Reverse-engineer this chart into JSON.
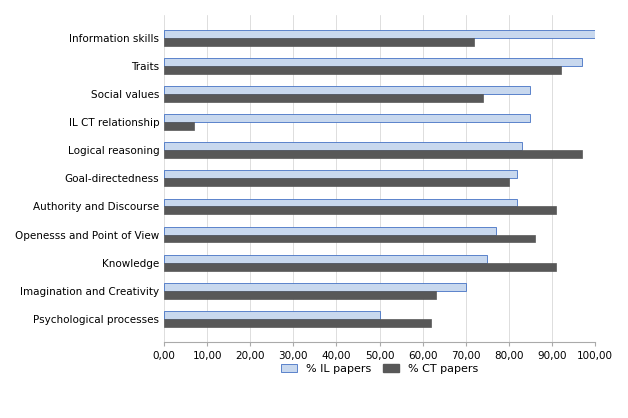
{
  "categories": [
    "Information skills",
    "Traits",
    "Social values",
    "IL CT relationship",
    "Logical reasoning",
    "Goal-directedness",
    "Authority and Discourse",
    "Openesss and Point of View",
    "Knowledge",
    "Imagination and Creativity",
    "Psychological processes"
  ],
  "il_papers": [
    100,
    97,
    85,
    85,
    83,
    82,
    82,
    77,
    75,
    70,
    50
  ],
  "ct_papers": [
    72,
    92,
    74,
    7,
    97,
    80,
    91,
    86,
    91,
    63,
    62
  ],
  "il_color": "#c8d8ee",
  "ct_color": "#585858",
  "xmax": 100,
  "xtick_step": 10,
  "legend_il": "% IL papers",
  "legend_ct": "% CT papers",
  "background_color": "#ffffff",
  "bar_height": 0.28,
  "bar_gap": 0.005,
  "axis_fontsize": 7.5,
  "legend_fontsize": 8
}
